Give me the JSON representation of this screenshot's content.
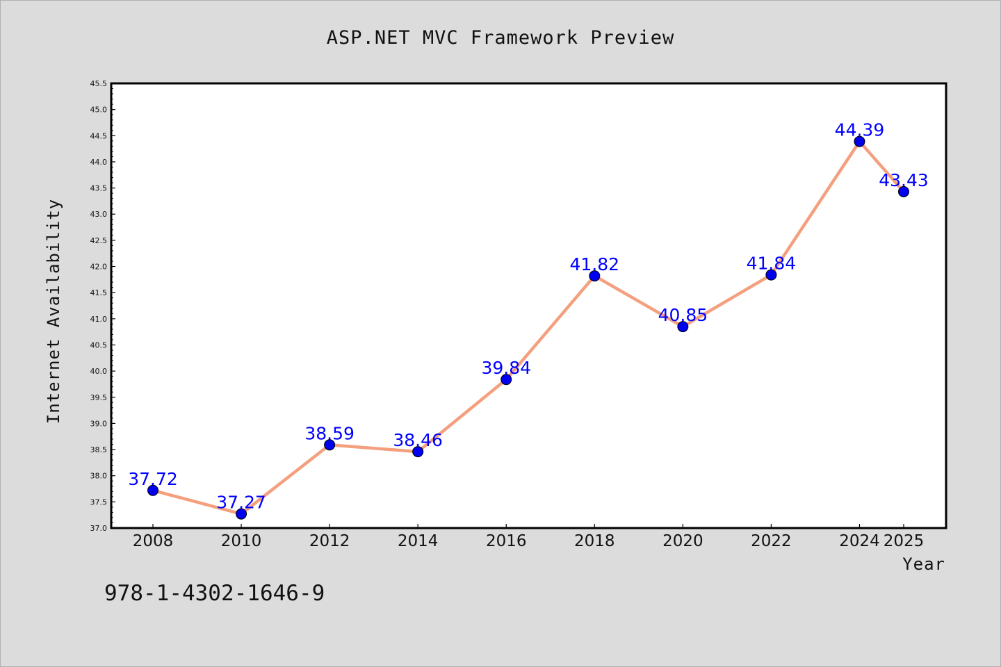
{
  "chart_data": {
    "type": "line",
    "title": "ASP.NET MVC Framework Preview",
    "xlabel": "Year",
    "ylabel": "Internet Availability",
    "x": [
      "2008",
      "2010",
      "2012",
      "2014",
      "2016",
      "2018",
      "2020",
      "2022",
      "2024",
      "2025"
    ],
    "series": [
      {
        "values": [
          37.72,
          37.27,
          38.59,
          38.46,
          39.84,
          41.82,
          40.85,
          41.84,
          44.39,
          43.43
        ],
        "line_color": "#f4a07f",
        "marker_color": "#0000ee",
        "label_color": "#0000ff"
      }
    ],
    "ylim": [
      37.0,
      45.5
    ],
    "yticks": [
      "37.0",
      "37.5",
      "38.0",
      "38.5",
      "39.0",
      "39.5",
      "40.0",
      "40.5",
      "41.0",
      "41.5",
      "42.0",
      "42.5",
      "43.0",
      "43.5",
      "44.0",
      "44.5",
      "45.0",
      "45.5"
    ],
    "grid": false,
    "legend": "none"
  },
  "footer_text": "978-1-4302-1646-9"
}
